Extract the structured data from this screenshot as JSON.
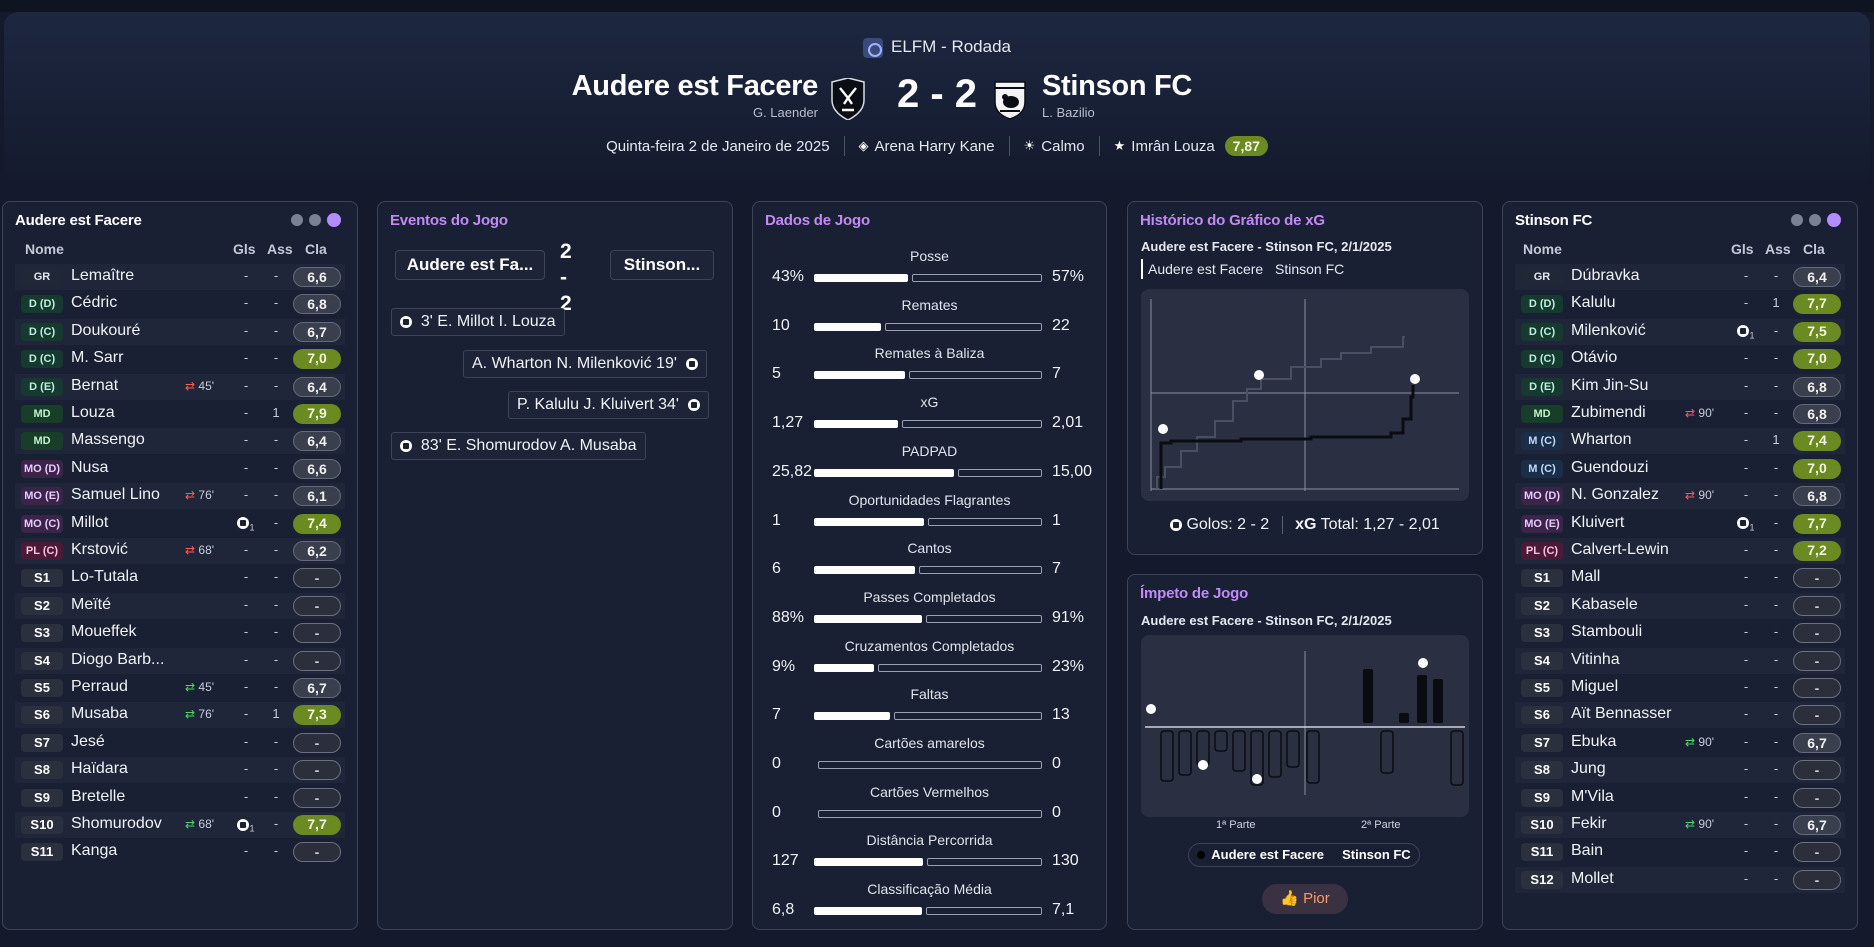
{
  "header": {
    "competition": "ELFM - Rodada",
    "home": {
      "name": "Audere est Facere",
      "manager": "G. Laender"
    },
    "away": {
      "name": "Stinson FC",
      "manager": "L. Bazilio"
    },
    "score": "2 - 2",
    "date": "Quinta-feira 2 de Janeiro de 2025",
    "stadium": "Arena Harry Kane",
    "weather": "Calmo",
    "motm": {
      "name": "Imrân Louza",
      "rating": "7,87"
    }
  },
  "home_panel": {
    "title": "Audere est Facere",
    "columns": {
      "name": "Nome",
      "gls": "Gls",
      "ass": "Ass",
      "cla": "Cla"
    },
    "players": [
      {
        "pos": "GR",
        "name": "Lemaître",
        "gls": "-",
        "ass": "-",
        "rating": "6,6",
        "sub": ""
      },
      {
        "pos": "D (D)",
        "name": "Cédric",
        "gls": "-",
        "ass": "-",
        "rating": "6,8",
        "sub": ""
      },
      {
        "pos": "D (C)",
        "name": "Doukouré",
        "gls": "-",
        "ass": "-",
        "rating": "6,7",
        "sub": ""
      },
      {
        "pos": "D (C)",
        "name": "M. Sarr",
        "gls": "-",
        "ass": "-",
        "rating": "7,0",
        "sub": ""
      },
      {
        "pos": "D (E)",
        "name": "Bernat",
        "gls": "-",
        "ass": "-",
        "rating": "6,4",
        "sub": "45'"
      },
      {
        "pos": "MD",
        "name": "Louza",
        "gls": "-",
        "ass": "1",
        "rating": "7,9",
        "sub": ""
      },
      {
        "pos": "MD",
        "name": "Massengo",
        "gls": "-",
        "ass": "-",
        "rating": "6,4",
        "sub": ""
      },
      {
        "pos": "MO (D)",
        "name": "Nusa",
        "gls": "-",
        "ass": "-",
        "rating": "6,6",
        "sub": ""
      },
      {
        "pos": "MO (E)",
        "name": "Samuel Lino",
        "gls": "-",
        "ass": "-",
        "rating": "6,1",
        "sub": "76'"
      },
      {
        "pos": "MO (C)",
        "name": "Millot",
        "gls": "1",
        "ass": "-",
        "rating": "7,4",
        "sub": ""
      },
      {
        "pos": "PL (C)",
        "name": "Krstović",
        "gls": "-",
        "ass": "-",
        "rating": "6,2",
        "sub": "68'"
      },
      {
        "pos": "S1",
        "name": "Lo-Tutala",
        "gls": "-",
        "ass": "-",
        "rating": "-",
        "sub": ""
      },
      {
        "pos": "S2",
        "name": "Meïté",
        "gls": "-",
        "ass": "-",
        "rating": "-",
        "sub": ""
      },
      {
        "pos": "S3",
        "name": "Moueffek",
        "gls": "-",
        "ass": "-",
        "rating": "-",
        "sub": ""
      },
      {
        "pos": "S4",
        "name": "Diogo Barb...",
        "gls": "-",
        "ass": "-",
        "rating": "-",
        "sub": ""
      },
      {
        "pos": "S5",
        "name": "Perraud",
        "gls": "-",
        "ass": "-",
        "rating": "6,7",
        "sub": "45'"
      },
      {
        "pos": "S6",
        "name": "Musaba",
        "gls": "-",
        "ass": "1",
        "rating": "7,3",
        "sub": "76'"
      },
      {
        "pos": "S7",
        "name": "Jesé",
        "gls": "-",
        "ass": "-",
        "rating": "-",
        "sub": ""
      },
      {
        "pos": "S8",
        "name": "Haïdara",
        "gls": "-",
        "ass": "-",
        "rating": "-",
        "sub": ""
      },
      {
        "pos": "S9",
        "name": "Bretelle",
        "gls": "-",
        "ass": "-",
        "rating": "-",
        "sub": ""
      },
      {
        "pos": "S10",
        "name": "Shomurodov",
        "gls": "1",
        "ass": "-",
        "rating": "7,7",
        "sub": "68'"
      },
      {
        "pos": "S11",
        "name": "Kanga",
        "gls": "-",
        "ass": "-",
        "rating": "-",
        "sub": ""
      }
    ]
  },
  "events_panel": {
    "title": "Eventos do Jogo",
    "home_tab": "Audere est Fa...",
    "score": "2 - 2",
    "away_tab": "Stinson...",
    "events": [
      {
        "side": "home",
        "text": "3' E. Millot I. Louza"
      },
      {
        "side": "away",
        "text": "A. Wharton N. Milenković 19'"
      },
      {
        "side": "away",
        "text": "P. Kalulu J. Kluivert 34'"
      },
      {
        "side": "home",
        "text": "83' E. Shomurodov A. Musaba"
      }
    ]
  },
  "stats_panel": {
    "title": "Dados de Jogo",
    "stats": [
      {
        "label": "Posse",
        "home": "43%",
        "away": "57%",
        "h": 43,
        "a": 57
      },
      {
        "label": "Remates",
        "home": "10",
        "away": "22",
        "h": 10,
        "a": 22
      },
      {
        "label": "Remates à Baliza",
        "home": "5",
        "away": "7",
        "h": 5,
        "a": 7
      },
      {
        "label": "xG",
        "home": "1,27",
        "away": "2,01",
        "h": 1.27,
        "a": 2.01
      },
      {
        "label": "PADPAD",
        "home": "25,82",
        "away": "15,00",
        "h": 25.82,
        "a": 15.0
      },
      {
        "label": "Oportunidades Flagrantes",
        "home": "1",
        "away": "1",
        "h": 1,
        "a": 1
      },
      {
        "label": "Cantos",
        "home": "6",
        "away": "7",
        "h": 6,
        "a": 7
      },
      {
        "label": "Passes Completados",
        "home": "88%",
        "away": "91%",
        "h": 88,
        "a": 91
      },
      {
        "label": "Cruzamentos Completados",
        "home": "9%",
        "away": "23%",
        "h": 9,
        "a": 23
      },
      {
        "label": "Faltas",
        "home": "7",
        "away": "13",
        "h": 7,
        "a": 13
      },
      {
        "label": "Cartões amarelos",
        "home": "0",
        "away": "0",
        "h": 0,
        "a": 0
      },
      {
        "label": "Cartões Vermelhos",
        "home": "0",
        "away": "0",
        "h": 0,
        "a": 0
      },
      {
        "label": "Distância Percorrida",
        "home": "127",
        "away": "130",
        "h": 127,
        "a": 130
      },
      {
        "label": "Classificação Média",
        "home": "6,8",
        "away": "7,1",
        "h": 6.8,
        "a": 7.1
      }
    ]
  },
  "xg_panel": {
    "title": "Histórico do Gráfico de xG",
    "subtitle": "Audere est Facere - Stinson FC, 2/1/2025",
    "legend_home": "Audere est Facere",
    "legend_away": "Stinson FC",
    "goals_label": "Golos:",
    "goals_value": "2 - 2",
    "xg_label": "xG",
    "xg_total_label": "Total:",
    "xg_total_value": "1,27 - 2,01"
  },
  "momentum_panel": {
    "title": "Ímpeto de Jogo",
    "subtitle": "Audere est Facere - Stinson FC, 2/1/2025",
    "half1": "1ª Parte",
    "half2": "2ª Parte",
    "legend_home": "Audere est Facere",
    "legend_away": "Stinson FC",
    "button": "Pior"
  },
  "away_panel": {
    "title": "Stinson FC",
    "columns": {
      "name": "Nome",
      "gls": "Gls",
      "ass": "Ass",
      "cla": "Cla"
    },
    "players": [
      {
        "pos": "GR",
        "name": "Dúbravka",
        "gls": "-",
        "ass": "-",
        "rating": "6,4",
        "sub": ""
      },
      {
        "pos": "D (D)",
        "name": "Kalulu",
        "gls": "-",
        "ass": "1",
        "rating": "7,7",
        "sub": ""
      },
      {
        "pos": "D (C)",
        "name": "Milenković",
        "gls": "1",
        "ass": "-",
        "rating": "7,5",
        "sub": ""
      },
      {
        "pos": "D (C)",
        "name": "Otávio",
        "gls": "-",
        "ass": "-",
        "rating": "7,0",
        "sub": ""
      },
      {
        "pos": "D (E)",
        "name": "Kim Jin-Su",
        "gls": "-",
        "ass": "-",
        "rating": "6,8",
        "sub": ""
      },
      {
        "pos": "MD",
        "name": "Zubimendi",
        "gls": "-",
        "ass": "-",
        "rating": "6,8",
        "sub": "90'"
      },
      {
        "pos": "M (C)",
        "name": "Wharton",
        "gls": "-",
        "ass": "1",
        "rating": "7,4",
        "sub": ""
      },
      {
        "pos": "M (C)",
        "name": "Guendouzi",
        "gls": "-",
        "ass": "-",
        "rating": "7,0",
        "sub": ""
      },
      {
        "pos": "MO (D)",
        "name": "N. Gonzalez",
        "gls": "-",
        "ass": "-",
        "rating": "6,8",
        "sub": "90'"
      },
      {
        "pos": "MO (E)",
        "name": "Kluivert",
        "gls": "1",
        "ass": "-",
        "rating": "7,7",
        "sub": ""
      },
      {
        "pos": "PL (C)",
        "name": "Calvert-Lewin",
        "gls": "-",
        "ass": "-",
        "rating": "7,2",
        "sub": ""
      },
      {
        "pos": "S1",
        "name": "Mall",
        "gls": "-",
        "ass": "-",
        "rating": "-",
        "sub": ""
      },
      {
        "pos": "S2",
        "name": "Kabasele",
        "gls": "-",
        "ass": "-",
        "rating": "-",
        "sub": ""
      },
      {
        "pos": "S3",
        "name": "Stambouli",
        "gls": "-",
        "ass": "-",
        "rating": "-",
        "sub": ""
      },
      {
        "pos": "S4",
        "name": "Vitinha",
        "gls": "-",
        "ass": "-",
        "rating": "-",
        "sub": ""
      },
      {
        "pos": "S5",
        "name": "Miguel",
        "gls": "-",
        "ass": "-",
        "rating": "-",
        "sub": ""
      },
      {
        "pos": "S6",
        "name": "Aït Bennasser",
        "gls": "-",
        "ass": "-",
        "rating": "-",
        "sub": ""
      },
      {
        "pos": "S7",
        "name": "Ebuka",
        "gls": "-",
        "ass": "-",
        "rating": "6,7",
        "sub": "90'"
      },
      {
        "pos": "S8",
        "name": "Jung",
        "gls": "-",
        "ass": "-",
        "rating": "-",
        "sub": ""
      },
      {
        "pos": "S9",
        "name": "M'Vila",
        "gls": "-",
        "ass": "-",
        "rating": "-",
        "sub": ""
      },
      {
        "pos": "S10",
        "name": "Fekir",
        "gls": "-",
        "ass": "-",
        "rating": "6,7",
        "sub": "90'"
      },
      {
        "pos": "S11",
        "name": "Bain",
        "gls": "-",
        "ass": "-",
        "rating": "-",
        "sub": ""
      },
      {
        "pos": "S12",
        "name": "Mollet",
        "gls": "-",
        "ass": "-",
        "rating": "-",
        "sub": ""
      }
    ]
  }
}
